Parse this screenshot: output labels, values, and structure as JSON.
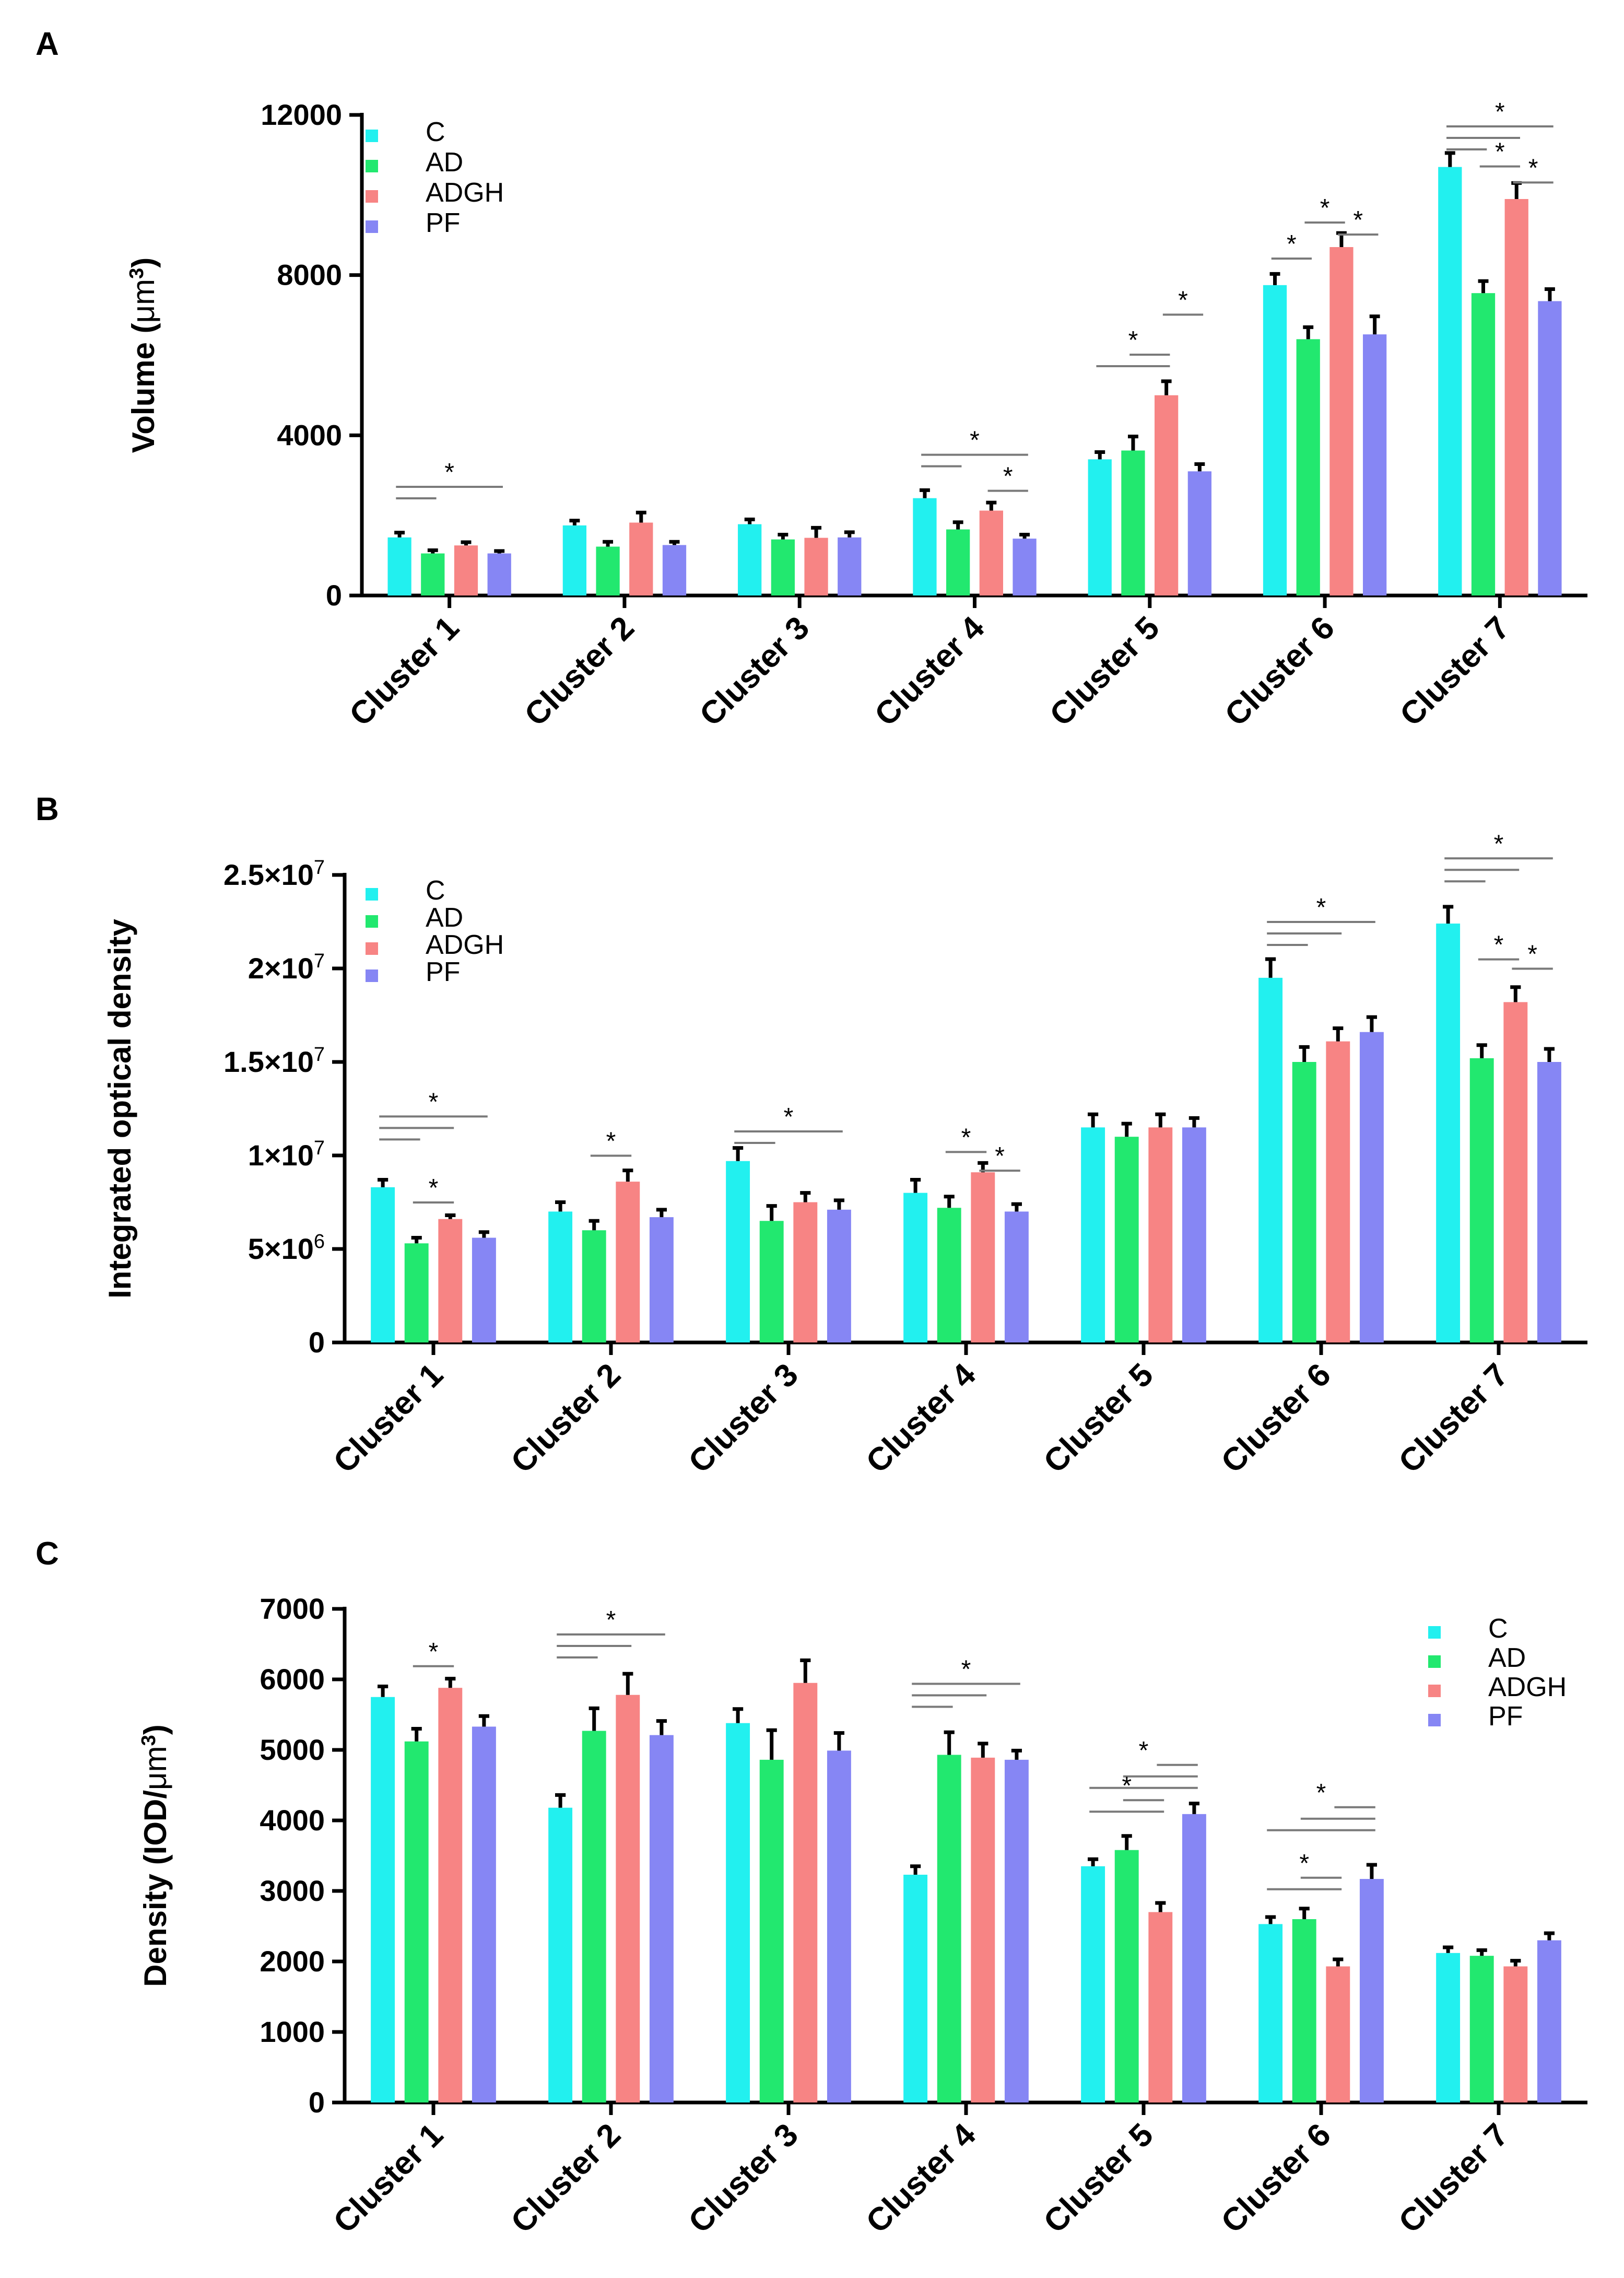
{
  "colors": {
    "C": "#22f0ef",
    "AD": "#22e86f",
    "ADGH": "#f78484",
    "PF": "#8686f4"
  },
  "chart_data": [
    {
      "panel": "A",
      "type": "bar",
      "ylabel": "Volume (μm3)",
      "ylabel_main": "Volume (",
      "ylabel_unit": "μm",
      "ylabel_sup": "3",
      "ylabel_close": ")",
      "ylim": [
        0,
        12000
      ],
      "yticks": [
        {
          "value": 0,
          "label": "0"
        },
        {
          "value": 4000,
          "label": "4000"
        },
        {
          "value": 8000,
          "label": "8000"
        },
        {
          "value": 12000,
          "label": "12000"
        }
      ],
      "categories": [
        "Cluster 1",
        "Cluster 2",
        "Cluster 3",
        "Cluster 4",
        "Cluster 5",
        "Cluster 6",
        "Cluster 7"
      ],
      "legend_position": "top-left",
      "series": [
        {
          "name": "C",
          "values": [
            1450,
            1750,
            1780,
            2430,
            3400,
            7750,
            10700
          ],
          "errors": [
            120,
            120,
            120,
            200,
            180,
            280,
            350
          ]
        },
        {
          "name": "AD",
          "values": [
            1050,
            1220,
            1400,
            1650,
            3620,
            6400,
            7550
          ],
          "errors": [
            80,
            120,
            120,
            180,
            350,
            300,
            300
          ]
        },
        {
          "name": "ADGH",
          "values": [
            1250,
            1820,
            1440,
            2120,
            5000,
            8700,
            9900
          ],
          "errors": [
            80,
            250,
            250,
            200,
            350,
            350,
            400
          ]
        },
        {
          "name": "PF",
          "values": [
            1050,
            1260,
            1450,
            1420,
            3100,
            6520,
            7350
          ],
          "errors": [
            60,
            80,
            130,
            100,
            180,
            450,
            300
          ]
        }
      ],
      "significance": [
        {
          "cluster": 1,
          "star_x": "C",
          "lines": [
            [
              0,
              1
            ],
            [
              0,
              3
            ]
          ],
          "star_from": 0,
          "star_to": 3,
          "star": "*",
          "level": 2,
          "star_value": 3000
        },
        {
          "cluster": 4,
          "lines": [
            [
              0,
              1
            ],
            [
              0,
              3
            ]
          ],
          "star_from": 0,
          "star_to": 3,
          "star": "*",
          "level": 2,
          "star_value": 3800
        },
        {
          "cluster": 4,
          "lines": [
            [
              2,
              3
            ]
          ],
          "star_from": 2,
          "star_to": 3,
          "star": "*",
          "level": 1,
          "star_value": 2900
        },
        {
          "cluster": 5,
          "lines": [
            [
              0,
              2
            ],
            [
              1,
              2
            ]
          ],
          "star_from": 0,
          "star_to": 2,
          "star": "*",
          "level": 2,
          "star_value": 6300
        },
        {
          "cluster": 5,
          "lines": [
            [
              2,
              3
            ]
          ],
          "star_from": 2,
          "star_to": 3,
          "star": "*",
          "level": 1,
          "star_value": 7300
        },
        {
          "cluster": 6,
          "lines": [
            [
              0,
              1
            ]
          ],
          "star_from": 0,
          "star_to": 1,
          "star": "*",
          "level": 1,
          "star_value": 8700
        },
        {
          "cluster": 6,
          "lines": [
            [
              1,
              2
            ]
          ],
          "star_from": 1,
          "star_to": 2,
          "star": "*",
          "level": 1,
          "star_value": 9600
        },
        {
          "cluster": 6,
          "lines": [
            [
              2,
              3
            ]
          ],
          "star_from": 2,
          "star_to": 3,
          "star": "*",
          "level": 1,
          "star_value": 9300
        },
        {
          "cluster": 7,
          "lines": [
            [
              0,
              1
            ],
            [
              0,
              2
            ],
            [
              0,
              3
            ]
          ],
          "star_from": 0,
          "star_to": 3,
          "star": "*",
          "level": 3,
          "star_value": 12000
        },
        {
          "cluster": 7,
          "lines": [
            [
              1,
              2
            ]
          ],
          "star_from": 1,
          "star_to": 2,
          "star": "*",
          "level": 1,
          "star_value": 11000
        },
        {
          "cluster": 7,
          "lines": [
            [
              2,
              3
            ]
          ],
          "star_from": 2,
          "star_to": 3,
          "star": "*",
          "level": 1,
          "star_value": 10600
        }
      ]
    },
    {
      "panel": "B",
      "type": "bar",
      "ylabel": "Integrated optical density",
      "ylim": [
        0,
        25000000
      ],
      "yticks": [
        {
          "value": 0,
          "label": "0",
          "mant": "",
          "exp": ""
        },
        {
          "value": 5000000,
          "label": "5×10^6",
          "mant": "5×10",
          "exp": "6"
        },
        {
          "value": 10000000,
          "label": "1×10^7",
          "mant": "1×10",
          "exp": "7"
        },
        {
          "value": 15000000,
          "label": "1.5×10^7",
          "mant": "1.5×10",
          "exp": "7"
        },
        {
          "value": 20000000,
          "label": "2×10^7",
          "mant": "2×10",
          "exp": "7"
        },
        {
          "value": 25000000,
          "label": "2.5×10^7",
          "mant": "2.5×10",
          "exp": "7"
        }
      ],
      "categories": [
        "Cluster 1",
        "Cluster 2",
        "Cluster 3",
        "Cluster 4",
        "Cluster 5",
        "Cluster 6",
        "Cluster 7"
      ],
      "legend_position": "top-left",
      "series": [
        {
          "name": "C",
          "values": [
            8300000,
            7000000,
            9700000,
            8000000,
            11500000,
            19500000,
            22400000
          ],
          "errors": [
            400000,
            500000,
            700000,
            700000,
            700000,
            1000000,
            900000
          ]
        },
        {
          "name": "AD",
          "values": [
            5300000,
            6000000,
            6500000,
            7200000,
            11000000,
            15000000,
            15200000
          ],
          "errors": [
            300000,
            500000,
            800000,
            600000,
            700000,
            800000,
            700000
          ]
        },
        {
          "name": "ADGH",
          "values": [
            6600000,
            8600000,
            7500000,
            9100000,
            11500000,
            16100000,
            18200000
          ],
          "errors": [
            200000,
            600000,
            500000,
            500000,
            700000,
            700000,
            800000
          ]
        },
        {
          "name": "PF",
          "values": [
            5600000,
            6700000,
            7100000,
            7000000,
            11500000,
            16600000,
            15000000
          ],
          "errors": [
            300000,
            400000,
            500000,
            400000,
            500000,
            800000,
            700000
          ]
        }
      ],
      "significance": [
        {
          "cluster": 1,
          "lines": [
            [
              0,
              1
            ],
            [
              0,
              2
            ],
            [
              0,
              3
            ]
          ],
          "star_from": 0,
          "star_to": 3,
          "star": "*",
          "level": 3,
          "star_value": 12700000
        },
        {
          "cluster": 1,
          "lines": [
            [
              1,
              2
            ]
          ],
          "star_from": 1,
          "star_to": 2,
          "star": "*",
          "level": 1,
          "star_value": 8100000
        },
        {
          "cluster": 2,
          "lines": [
            [
              1,
              2
            ]
          ],
          "star_from": 1,
          "star_to": 2,
          "star": "*",
          "level": 1,
          "star_value": 10600000
        },
        {
          "cluster": 3,
          "lines": [
            [
              0,
              1
            ],
            [
              0,
              3
            ]
          ],
          "star_from": 0,
          "star_to": 3,
          "star": "*",
          "level": 2,
          "star_value": 11900000
        },
        {
          "cluster": 4,
          "lines": [
            [
              1,
              2
            ]
          ],
          "star_from": 1,
          "star_to": 2,
          "star": "*",
          "level": 1,
          "star_value": 10800000
        },
        {
          "cluster": 4,
          "lines": [
            [
              2,
              3
            ]
          ],
          "star_from": 2,
          "star_to": 3,
          "star": "*",
          "level": 1,
          "star_value": 9800000
        },
        {
          "cluster": 6,
          "lines": [
            [
              0,
              1
            ],
            [
              0,
              2
            ],
            [
              0,
              3
            ]
          ],
          "star_from": 0,
          "star_to": 3,
          "star": "*",
          "level": 3,
          "star_value": 23100000
        },
        {
          "cluster": 7,
          "lines": [
            [
              0,
              1
            ],
            [
              0,
              2
            ],
            [
              0,
              3
            ]
          ],
          "star_from": 0,
          "star_to": 3,
          "star": "*",
          "level": 3,
          "star_value": 26500000
        },
        {
          "cluster": 7,
          "lines": [
            [
              1,
              2
            ]
          ],
          "star_from": 1,
          "star_to": 2,
          "star": "*",
          "level": 1,
          "star_value": 21100000
        },
        {
          "cluster": 7,
          "lines": [
            [
              2,
              3
            ]
          ],
          "star_from": 2,
          "star_to": 3,
          "star": "*",
          "level": 1,
          "star_value": 20600000
        }
      ]
    },
    {
      "panel": "C",
      "type": "bar",
      "ylabel": "Density (IOD/μm3)",
      "ylabel_main": "Density (IOD/",
      "ylabel_unit": "μm",
      "ylabel_sup": "3",
      "ylabel_close": ")",
      "ylim": [
        0,
        7000
      ],
      "yticks": [
        {
          "value": 0,
          "label": "0"
        },
        {
          "value": 1000,
          "label": "1000"
        },
        {
          "value": 2000,
          "label": "2000"
        },
        {
          "value": 3000,
          "label": "3000"
        },
        {
          "value": 4000,
          "label": "4000"
        },
        {
          "value": 5000,
          "label": "5000"
        },
        {
          "value": 6000,
          "label": "6000"
        },
        {
          "value": 7000,
          "label": "7000"
        }
      ],
      "categories": [
        "Cluster 1",
        "Cluster 2",
        "Cluster 3",
        "Cluster 4",
        "Cluster 5",
        "Cluster 6",
        "Cluster 7"
      ],
      "legend_position": "top-right",
      "series": [
        {
          "name": "C",
          "values": [
            5750,
            4180,
            5380,
            3230,
            3350,
            2530,
            2120
          ],
          "errors": [
            150,
            180,
            200,
            120,
            100,
            100,
            80
          ]
        },
        {
          "name": "AD",
          "values": [
            5120,
            5270,
            4860,
            4930,
            3580,
            2600,
            2080
          ],
          "errors": [
            180,
            320,
            420,
            320,
            200,
            150,
            80
          ]
        },
        {
          "name": "ADGH",
          "values": [
            5880,
            5780,
            5950,
            4890,
            2700,
            1930,
            1930
          ],
          "errors": [
            130,
            300,
            320,
            200,
            130,
            100,
            80
          ]
        },
        {
          "name": "PF",
          "values": [
            5330,
            5210,
            4990,
            4860,
            4090,
            3170,
            2300
          ],
          "errors": [
            150,
            200,
            250,
            130,
            150,
            200,
            100
          ]
        }
      ],
      "significance": [
        {
          "cluster": 1,
          "lines": [
            [
              1,
              2
            ]
          ],
          "star_from": 1,
          "star_to": 2,
          "star": "*",
          "level": 1,
          "star_value": 6350
        },
        {
          "cluster": 2,
          "lines": [
            [
              0,
              1
            ],
            [
              0,
              2
            ],
            [
              0,
              3
            ]
          ],
          "star_from": 0,
          "star_to": 3,
          "star": "*",
          "level": 3,
          "star_value": 6800
        },
        {
          "cluster": 4,
          "lines": [
            [
              0,
              1
            ],
            [
              0,
              2
            ],
            [
              0,
              3
            ]
          ],
          "star_from": 0,
          "star_to": 3,
          "star": "*",
          "level": 3,
          "star_value": 6100
        },
        {
          "cluster": 5,
          "lines": [
            [
              0,
              3
            ],
            [
              1,
              3
            ],
            [
              2,
              3
            ]
          ],
          "star_from": 0,
          "star_to": 3,
          "star": "*",
          "level": 3,
          "star_value": 4950
        },
        {
          "cluster": 5,
          "lines": [
            [
              0,
              2
            ],
            [
              1,
              2
            ]
          ],
          "star_from": 0,
          "star_to": 2,
          "star": "*",
          "level": 2,
          "star_value": 4450
        },
        {
          "cluster": 6,
          "lines": [
            [
              0,
              3
            ],
            [
              1,
              3
            ],
            [
              2,
              3
            ]
          ],
          "star_from": 0,
          "star_to": 3,
          "star": "*",
          "level": 3,
          "star_value": 4350
        },
        {
          "cluster": 6,
          "lines": [
            [
              0,
              2
            ],
            [
              1,
              2
            ]
          ],
          "star_from": 0,
          "star_to": 2,
          "star": "*",
          "level": 2,
          "star_value": 3350
        }
      ]
    }
  ],
  "panels": [
    "A",
    "B",
    "C"
  ]
}
